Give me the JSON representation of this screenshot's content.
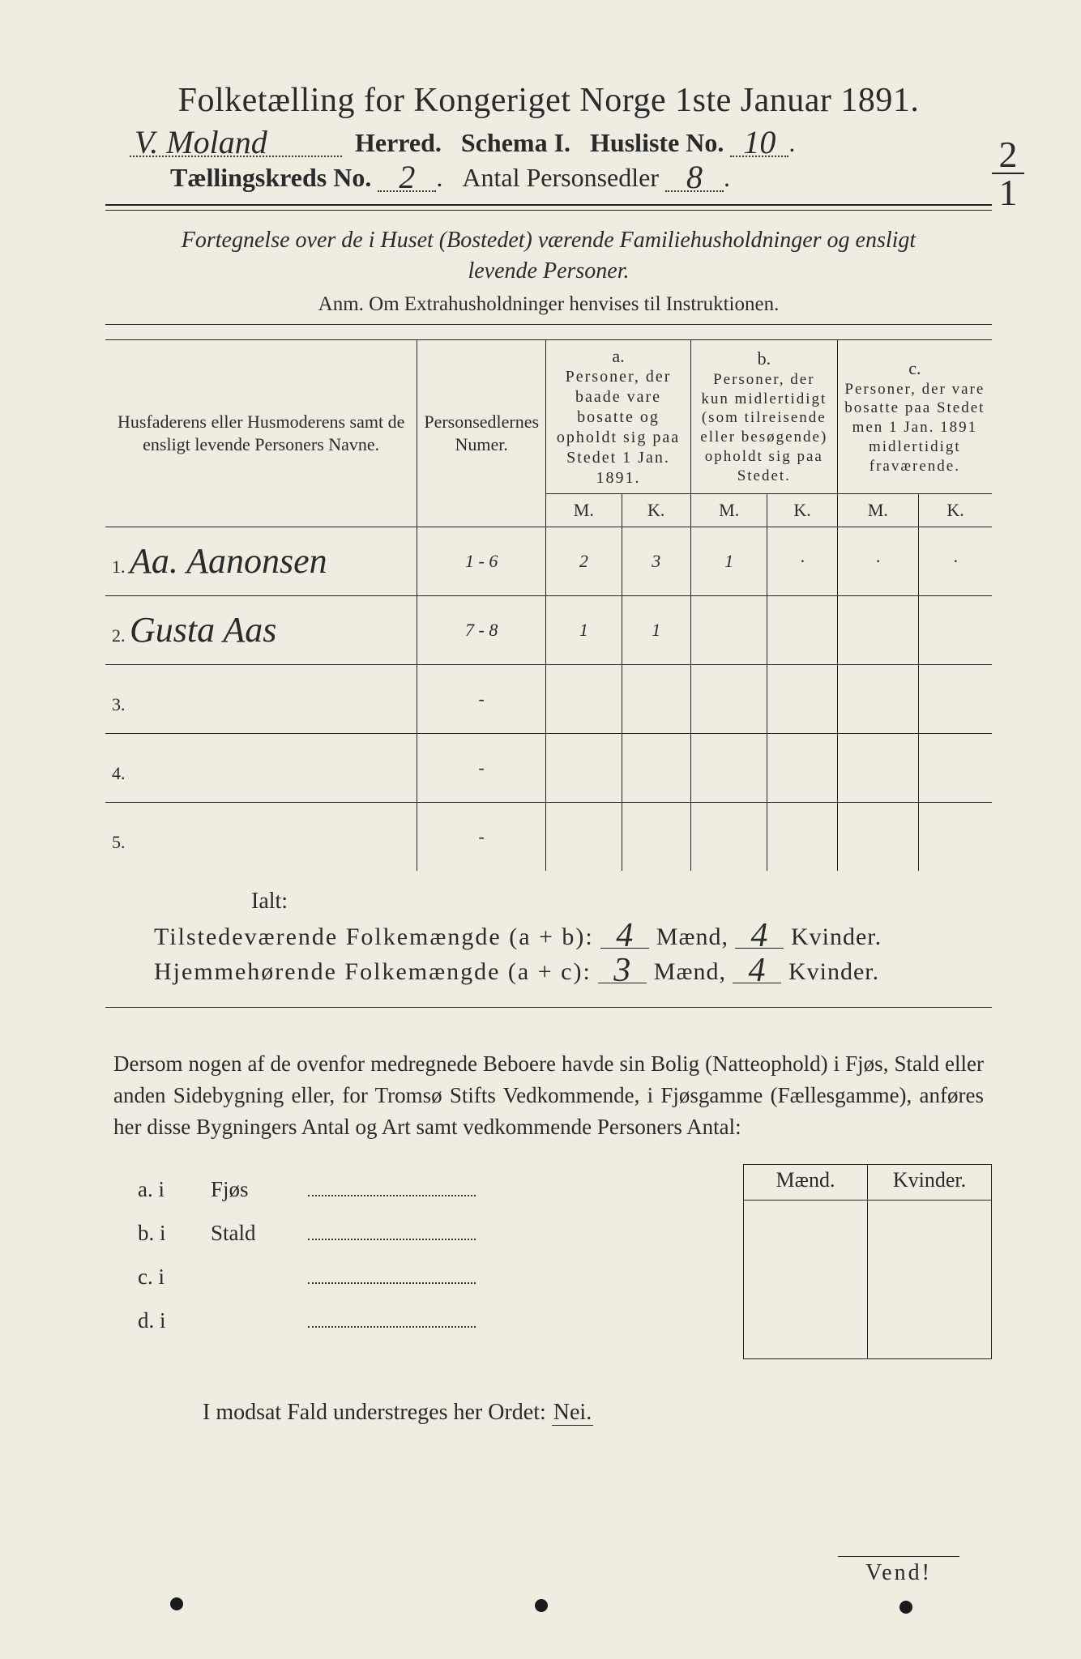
{
  "header": {
    "title": "Folketælling for Kongeriget Norge 1ste Januar 1891.",
    "herred_hw": "V. Moland",
    "herred_label": "Herred.",
    "schema_label": "Schema I.",
    "husliste_label": "Husliste No.",
    "husliste_no": "10",
    "kreds_label": "Tællingskreds No.",
    "kreds_no": "2",
    "antal_label": "Antal Personsedler",
    "antal_no": "8",
    "fraction_top": "2",
    "fraction_bot": "1"
  },
  "desc": {
    "line": "Fortegnelse over de i Huset (Bostedet) værende Familiehusholdninger og ensligt levende Personer.",
    "anm": "Anm. Om Extrahusholdninger henvises til Instruktionen."
  },
  "thead": {
    "col1": "Husfaderens eller Husmoderens samt de ensligt levende Personers Navne.",
    "col2": "Personsedlernes Numer.",
    "a_top": "a.",
    "a": "Personer, der baade vare bosatte og opholdt sig paa Stedet 1 Jan. 1891.",
    "b_top": "b.",
    "b": "Personer, der kun midlertidigt (som tilreisende eller besøgende) opholdt sig paa Stedet.",
    "c_top": "c.",
    "c": "Personer, der vare bosatte paa Stedet men 1 Jan. 1891 midlertidigt fraværende.",
    "M": "M.",
    "K": "K."
  },
  "rows": [
    {
      "n": "1.",
      "name": "Aa. Aanonsen",
      "num": "1 - 6",
      "aM": "2",
      "aK": "3",
      "bM": "1",
      "bK": "·",
      "cM": "·",
      "cK": "·"
    },
    {
      "n": "2.",
      "name": "Gusta Aas",
      "num": "7 - 8",
      "aM": "1",
      "aK": "1",
      "bM": "",
      "bK": "",
      "cM": "",
      "cK": ""
    },
    {
      "n": "3.",
      "name": "",
      "num": "-",
      "aM": "",
      "aK": "",
      "bM": "",
      "bK": "",
      "cM": "",
      "cK": ""
    },
    {
      "n": "4.",
      "name": "",
      "num": "-",
      "aM": "",
      "aK": "",
      "bM": "",
      "bK": "",
      "cM": "",
      "cK": ""
    },
    {
      "n": "5.",
      "name": "",
      "num": "-",
      "aM": "",
      "aK": "",
      "bM": "",
      "bK": "",
      "cM": "",
      "cK": ""
    }
  ],
  "ialt": "Ialt:",
  "sum": {
    "line1_label_a": "Tilstedeværende Folkemængde (a + b):",
    "line1_m": "4",
    "line1_k": "4",
    "line2_label_a": "Hjemmehørende Folkemængde (a + c):",
    "line2_m": "3",
    "line2_k": "4",
    "maend": "Mænd,",
    "kvinder": "Kvinder."
  },
  "para": "Dersom nogen af de ovenfor medregnede Beboere havde sin Bolig (Natteophold) i Fjøs, Stald eller anden Sidebygning eller, for Tromsø Stifts Vedkommende, i Fjøsgamme (Fællesgamme), anføres her disse Bygningers Antal og Art samt vedkommende Personers Antal:",
  "mkbox": {
    "m": "Mænd.",
    "k": "Kvinder."
  },
  "abcd": [
    {
      "k": "a.  i",
      "name": "Fjøs"
    },
    {
      "k": "b.  i",
      "name": "Stald"
    },
    {
      "k": "c.  i",
      "name": ""
    },
    {
      "k": "d.  i",
      "name": ""
    }
  ],
  "nei": {
    "line": "I modsat Fald understreges her Ordet:",
    "word": "Nei."
  },
  "vend": "Vend!",
  "colors": {
    "paper": "#efede2",
    "ink": "#2a2a2a"
  }
}
